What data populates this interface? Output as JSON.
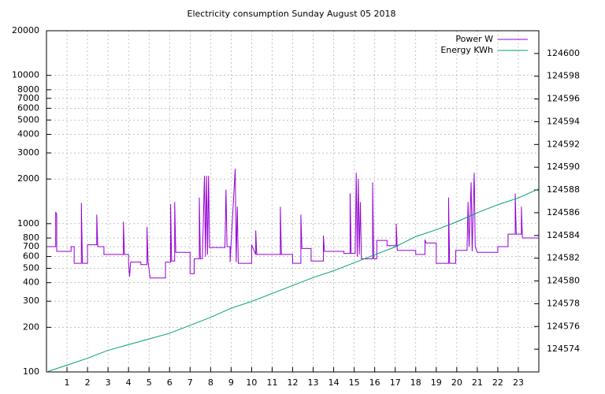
{
  "chart_data": {
    "type": "line",
    "title": "Electricity consumption Sunday August 05 2018",
    "log_y": true,
    "grid": true,
    "legend": "top-right",
    "xlim": [
      0,
      24
    ],
    "xticks": [
      1,
      2,
      3,
      4,
      5,
      6,
      7,
      8,
      9,
      10,
      11,
      12,
      13,
      14,
      15,
      16,
      17,
      18,
      19,
      20,
      21,
      22,
      23
    ],
    "ylim": [
      100,
      20000
    ],
    "yticks": [
      100,
      200,
      300,
      400,
      500,
      600,
      700,
      800,
      1000,
      2000,
      3000,
      4000,
      5000,
      6000,
      7000,
      8000,
      10000,
      20000
    ],
    "y2lim": [
      124572,
      124602
    ],
    "y2ticks": [
      124574,
      124576,
      124578,
      124580,
      124582,
      124584,
      124586,
      124588,
      124590,
      124592,
      124594,
      124596,
      124598,
      124600
    ],
    "series": [
      {
        "name": "Power W",
        "color": "#9400d3",
        "x": [
          0,
          0.45,
          0.45,
          0.5,
          0.5,
          1.2,
          1.2,
          1.35,
          1.35,
          1.7,
          1.7,
          1.75,
          2.0,
          2.0,
          2.45,
          2.45,
          2.5,
          2.8,
          2.8,
          3.75,
          3.75,
          3.8,
          4.0,
          4.0,
          4.05,
          4.1,
          4.6,
          4.6,
          4.9,
          4.9,
          4.95,
          5.05,
          5.8,
          5.8,
          6.05,
          6.05,
          6.1,
          6.25,
          6.25,
          6.3,
          7.0,
          7.0,
          7.2,
          7.2,
          7.45,
          7.45,
          7.5,
          7.6,
          7.7,
          7.75,
          7.8,
          7.85,
          7.9,
          7.95,
          8.7,
          8.75,
          8.8,
          8.95,
          8.95,
          9.2,
          9.25,
          9.3,
          9.35,
          10.0,
          10.0,
          10.2,
          10.2,
          10.25,
          11.4,
          11.4,
          11.45,
          12.0,
          12.0,
          12.4,
          12.4,
          12.45,
          12.9,
          12.9,
          13.5,
          13.5,
          13.55,
          14.5,
          14.5,
          14.8,
          14.8,
          14.85,
          15.05,
          15.1,
          15.15,
          15.2,
          15.25,
          15.3,
          15.35,
          15.9,
          15.9,
          15.95,
          16.1,
          16.1,
          16.6,
          16.6,
          17.05,
          17.05,
          17.1,
          18.0,
          18.0,
          18.45,
          18.45,
          18.5,
          19.0,
          19.0,
          19.6,
          19.6,
          19.65,
          19.95,
          19.95,
          20.5,
          20.55,
          20.6,
          20.7,
          20.75,
          20.85,
          20.9,
          21.0,
          22.0,
          22.0,
          22.5,
          22.5,
          22.85,
          22.85,
          22.9,
          23.15,
          23.15,
          23.2,
          24
        ],
        "values": [
          700,
          700,
          1200,
          1150,
          650,
          650,
          700,
          700,
          540,
          540,
          1380,
          540,
          540,
          720,
          720,
          1150,
          700,
          700,
          620,
          620,
          1030,
          620,
          620,
          550,
          440,
          550,
          550,
          530,
          530,
          950,
          560,
          430,
          430,
          550,
          550,
          1350,
          560,
          560,
          1400,
          640,
          640,
          460,
          460,
          580,
          580,
          1500,
          580,
          580,
          2100,
          600,
          2100,
          620,
          2100,
          690,
          690,
          1700,
          700,
          700,
          550,
          2350,
          550,
          1300,
          540,
          540,
          720,
          620,
          900,
          620,
          620,
          1300,
          620,
          620,
          540,
          540,
          1150,
          680,
          680,
          560,
          560,
          830,
          650,
          650,
          630,
          630,
          1600,
          630,
          630,
          2200,
          600,
          2000,
          620,
          1400,
          580,
          580,
          1900,
          580,
          580,
          770,
          770,
          710,
          710,
          1000,
          660,
          660,
          620,
          620,
          780,
          740,
          740,
          540,
          540,
          1500,
          540,
          540,
          660,
          660,
          1400,
          700,
          1900,
          650,
          2200,
          700,
          640,
          640,
          700,
          700,
          850,
          850,
          1600,
          850,
          850,
          1300,
          800,
          800
        ]
      },
      {
        "name": "Energy KWh",
        "color": "#009e73",
        "axis": "y2",
        "x": [
          0,
          1,
          2,
          3,
          4,
          5,
          6,
          7,
          8,
          9,
          10,
          11,
          12,
          13,
          14,
          15,
          16,
          17,
          18,
          19,
          20,
          21,
          22,
          23,
          24
        ],
        "values": [
          124572.0,
          124572.6,
          124573.2,
          124573.9,
          124574.4,
          124574.9,
          124575.4,
          124576.1,
          124576.8,
          124577.6,
          124578.2,
          124578.9,
          124579.6,
          124580.3,
          124580.9,
          124581.6,
          124582.3,
          124583.0,
          124583.9,
          124584.5,
          124585.2,
          124586.0,
          124586.7,
          124587.3,
          124588.1
        ]
      }
    ]
  }
}
